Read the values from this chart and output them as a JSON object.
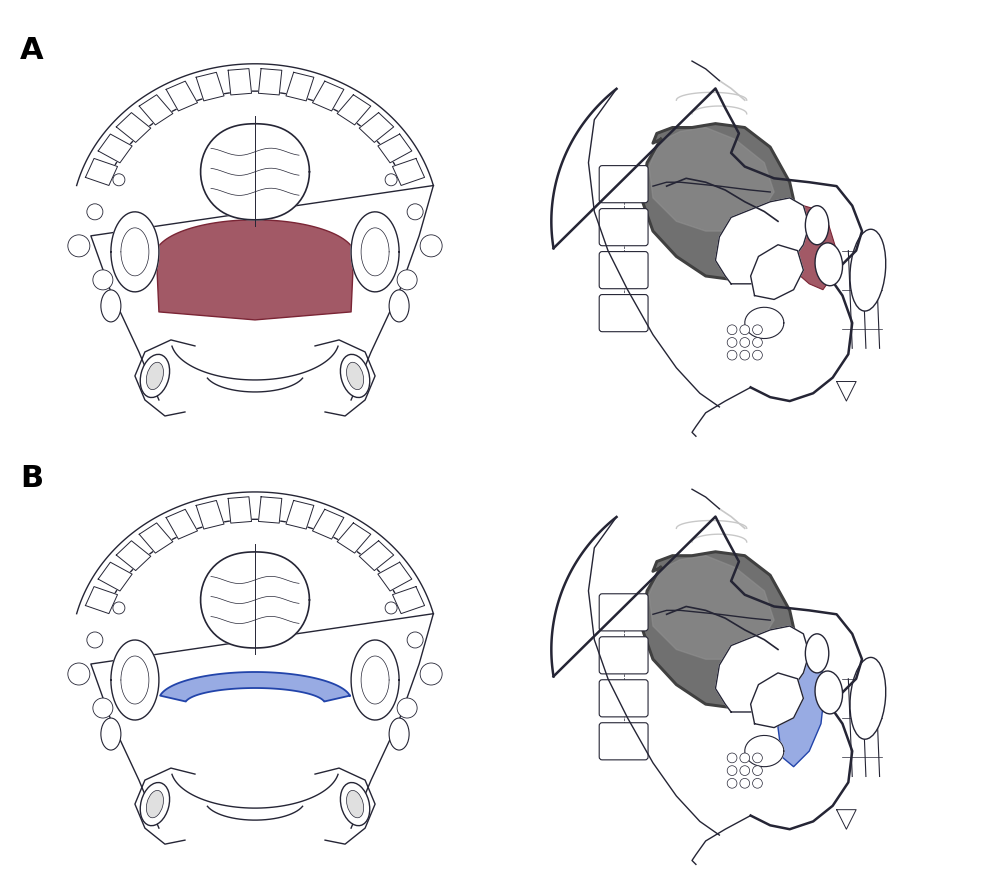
{
  "background_color": "#ffffff",
  "label_A": "A",
  "label_B": "B",
  "label_fontsize": 22,
  "label_fontweight": "bold",
  "fig_width": 10.0,
  "fig_height": 8.92,
  "red_fill": "#8B3040",
  "red_alpha": 0.8,
  "red_edge": "#7A2535",
  "blue_fill": "#4466CC",
  "blue_alpha": 0.55,
  "blue_edge": "#2244AA",
  "dark_gray": "#606060",
  "dark_gray2": "#404040",
  "mid_gray": "#909090",
  "light_gray": "#C8C8C8",
  "very_light_gray": "#E0E0E0",
  "line_color": "#252535",
  "line_width": 1.0,
  "thick_line": 1.8,
  "thin_line": 0.6
}
